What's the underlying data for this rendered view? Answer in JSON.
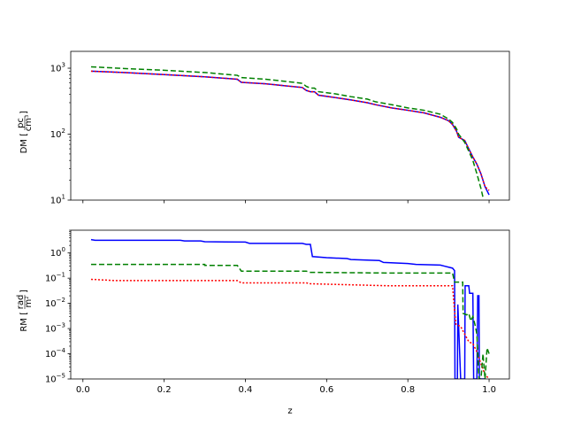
{
  "chart_data": [
    {
      "type": "line",
      "ylabel": "DM [pc/cm³]",
      "ylabel_parts": {
        "prefix": "DM",
        "num": "pc",
        "den": "cm",
        "den_sup": "3"
      },
      "yscale": "log",
      "xlim": [
        -0.03,
        1.05
      ],
      "ylim": [
        10,
        1800
      ],
      "yticks": [
        {
          "value": 10,
          "base": "10",
          "exp": "1"
        },
        {
          "value": 100,
          "base": "10",
          "exp": "2"
        },
        {
          "value": 1000,
          "base": "10",
          "exp": "3"
        }
      ],
      "show_xticklabels": false,
      "series": [
        {
          "color": "#0000ff",
          "dash": "solid",
          "points": [
            [
              0.02,
              900
            ],
            [
              0.1,
              860
            ],
            [
              0.2,
              800
            ],
            [
              0.3,
              740
            ],
            [
              0.38,
              680
            ],
            [
              0.39,
              610
            ],
            [
              0.45,
              580
            ],
            [
              0.5,
              540
            ],
            [
              0.54,
              510
            ],
            [
              0.55,
              460
            ],
            [
              0.56,
              440
            ],
            [
              0.57,
              440
            ],
            [
              0.58,
              390
            ],
            [
              0.62,
              360
            ],
            [
              0.66,
              330
            ],
            [
              0.7,
              300
            ],
            [
              0.72,
              280
            ],
            [
              0.76,
              250
            ],
            [
              0.8,
              230
            ],
            [
              0.84,
              210
            ],
            [
              0.88,
              180
            ],
            [
              0.9,
              160
            ],
            [
              0.91,
              140
            ],
            [
              0.92,
              110
            ],
            [
              0.925,
              90
            ],
            [
              0.94,
              80
            ],
            [
              0.95,
              60
            ],
            [
              0.96,
              45
            ],
            [
              0.97,
              35
            ],
            [
              0.98,
              25
            ],
            [
              0.99,
              16
            ],
            [
              1.0,
              12
            ]
          ]
        },
        {
          "color": "#ff0000",
          "dash": "2,2",
          "points": [
            [
              0.02,
              900
            ],
            [
              0.1,
              860
            ],
            [
              0.2,
              800
            ],
            [
              0.3,
              740
            ],
            [
              0.38,
              680
            ],
            [
              0.39,
              610
            ],
            [
              0.45,
              580
            ],
            [
              0.5,
              540
            ],
            [
              0.54,
              510
            ],
            [
              0.55,
              460
            ],
            [
              0.56,
              440
            ],
            [
              0.57,
              440
            ],
            [
              0.58,
              390
            ],
            [
              0.62,
              360
            ],
            [
              0.66,
              330
            ],
            [
              0.7,
              300
            ],
            [
              0.72,
              280
            ],
            [
              0.76,
              250
            ],
            [
              0.8,
              230
            ],
            [
              0.84,
              210
            ],
            [
              0.88,
              180
            ],
            [
              0.9,
              160
            ],
            [
              0.91,
              140
            ],
            [
              0.92,
              110
            ],
            [
              0.925,
              90
            ],
            [
              0.94,
              80
            ],
            [
              0.95,
              60
            ],
            [
              0.96,
              45
            ],
            [
              0.97,
              35
            ],
            [
              0.98,
              25
            ],
            [
              0.99,
              16
            ],
            [
              1.0,
              14
            ]
          ]
        },
        {
          "color": "#008000",
          "dash": "6,3",
          "points": [
            [
              0.02,
              1050
            ],
            [
              0.1,
              990
            ],
            [
              0.2,
              930
            ],
            [
              0.3,
              860
            ],
            [
              0.38,
              780
            ],
            [
              0.39,
              720
            ],
            [
              0.45,
              680
            ],
            [
              0.5,
              630
            ],
            [
              0.54,
              590
            ],
            [
              0.55,
              530
            ],
            [
              0.56,
              500
            ],
            [
              0.57,
              500
            ],
            [
              0.58,
              440
            ],
            [
              0.62,
              410
            ],
            [
              0.66,
              370
            ],
            [
              0.7,
              340
            ],
            [
              0.72,
              310
            ],
            [
              0.76,
              280
            ],
            [
              0.8,
              250
            ],
            [
              0.84,
              230
            ],
            [
              0.88,
              200
            ],
            [
              0.9,
              170
            ],
            [
              0.91,
              150
            ],
            [
              0.92,
              120
            ],
            [
              0.925,
              100
            ],
            [
              0.94,
              75
            ],
            [
              0.95,
              55
            ],
            [
              0.96,
              40
            ],
            [
              0.97,
              25
            ],
            [
              0.98,
              15
            ],
            [
              0.985,
              11
            ]
          ]
        }
      ]
    },
    {
      "type": "line",
      "xlabel": "z",
      "ylabel": "RM [rad/m²]",
      "ylabel_parts": {
        "prefix": "RM",
        "num": "rad",
        "den": "m",
        "den_sup": "2"
      },
      "yscale": "log",
      "xlim": [
        -0.03,
        1.05
      ],
      "ylim": [
        1e-05,
        8
      ],
      "xticks": [
        "0.0",
        "0.2",
        "0.4",
        "0.6",
        "0.8",
        "1.0"
      ],
      "xtick_values": [
        0,
        0.2,
        0.4,
        0.6,
        0.8,
        1.0
      ],
      "yticks": [
        {
          "value": 1e-05,
          "base": "10",
          "exp": "−5"
        },
        {
          "value": 0.0001,
          "base": "10",
          "exp": "−4"
        },
        {
          "value": 0.001,
          "base": "10",
          "exp": "−3"
        },
        {
          "value": 0.01,
          "base": "10",
          "exp": "−2"
        },
        {
          "value": 0.1,
          "base": "10",
          "exp": "−1"
        },
        {
          "value": 1,
          "base": "10",
          "exp": "0"
        }
      ],
      "series": [
        {
          "color": "#0000ff",
          "dash": "solid",
          "points": [
            [
              0.02,
              3.4
            ],
            [
              0.03,
              3.2
            ],
            [
              0.24,
              3.2
            ],
            [
              0.25,
              3.0
            ],
            [
              0.29,
              3.0
            ],
            [
              0.3,
              2.8
            ],
            [
              0.4,
              2.7
            ],
            [
              0.41,
              2.4
            ],
            [
              0.54,
              2.4
            ],
            [
              0.55,
              2.2
            ],
            [
              0.56,
              2.2
            ],
            [
              0.565,
              0.72
            ],
            [
              0.6,
              0.65
            ],
            [
              0.65,
              0.6
            ],
            [
              0.66,
              0.55
            ],
            [
              0.73,
              0.5
            ],
            [
              0.74,
              0.42
            ],
            [
              0.8,
              0.38
            ],
            [
              0.82,
              0.35
            ],
            [
              0.88,
              0.33
            ],
            [
              0.89,
              0.3
            ],
            [
              0.91,
              0.25
            ],
            [
              0.915,
              0.2
            ],
            [
              0.916,
              1e-05
            ],
            [
              0.922,
              1e-05
            ],
            [
              0.923,
              0.009
            ],
            [
              0.93,
              1e-05
            ],
            [
              0.94,
              1e-05
            ],
            [
              0.941,
              0.05
            ],
            [
              0.95,
              0.05
            ],
            [
              0.952,
              0.025
            ],
            [
              0.96,
              0.025
            ],
            [
              0.962,
              1e-05
            ],
            [
              0.97,
              1e-05
            ],
            [
              0.972,
              0.02
            ],
            [
              0.975,
              0.02
            ],
            [
              0.976,
              1e-05
            ],
            [
              0.99,
              1e-05
            ]
          ]
        },
        {
          "color": "#ff0000",
          "dash": "2,2",
          "points": [
            [
              0.02,
              0.09
            ],
            [
              0.08,
              0.08
            ],
            [
              0.38,
              0.08
            ],
            [
              0.39,
              0.065
            ],
            [
              0.55,
              0.065
            ],
            [
              0.56,
              0.06
            ],
            [
              0.75,
              0.05
            ],
            [
              0.91,
              0.05
            ],
            [
              0.915,
              0.005
            ],
            [
              0.918,
              0.0015
            ],
            [
              0.93,
              0.0012
            ],
            [
              0.94,
              0.0006
            ],
            [
              0.95,
              0.0003
            ],
            [
              0.96,
              0.00025
            ],
            [
              0.97,
              0.00012
            ],
            [
              0.98,
              4e-05
            ],
            [
              0.99,
              1.5e-05
            ],
            [
              1.0,
              1e-05
            ]
          ]
        },
        {
          "color": "#008000",
          "dash": "6,3",
          "points": [
            [
              0.02,
              0.35
            ],
            [
              0.3,
              0.35
            ],
            [
              0.3,
              0.32
            ],
            [
              0.38,
              0.32
            ],
            [
              0.39,
              0.19
            ],
            [
              0.55,
              0.19
            ],
            [
              0.56,
              0.17
            ],
            [
              0.75,
              0.16
            ],
            [
              0.91,
              0.16
            ],
            [
              0.915,
              0.07
            ],
            [
              0.935,
              0.07
            ],
            [
              0.936,
              0.004
            ],
            [
              0.945,
              0.0035
            ],
            [
              0.95,
              0.004
            ],
            [
              0.955,
              0.002
            ],
            [
              0.96,
              0.003
            ],
            [
              0.965,
              0.0015
            ],
            [
              0.97,
              0.0006
            ],
            [
              0.975,
              1e-05
            ],
            [
              0.98,
              1e-05
            ],
            [
              0.985,
              0.0001
            ],
            [
              0.99,
              1e-05
            ],
            [
              0.995,
              0.00017
            ],
            [
              1.0,
              0.0001
            ]
          ]
        }
      ]
    }
  ]
}
